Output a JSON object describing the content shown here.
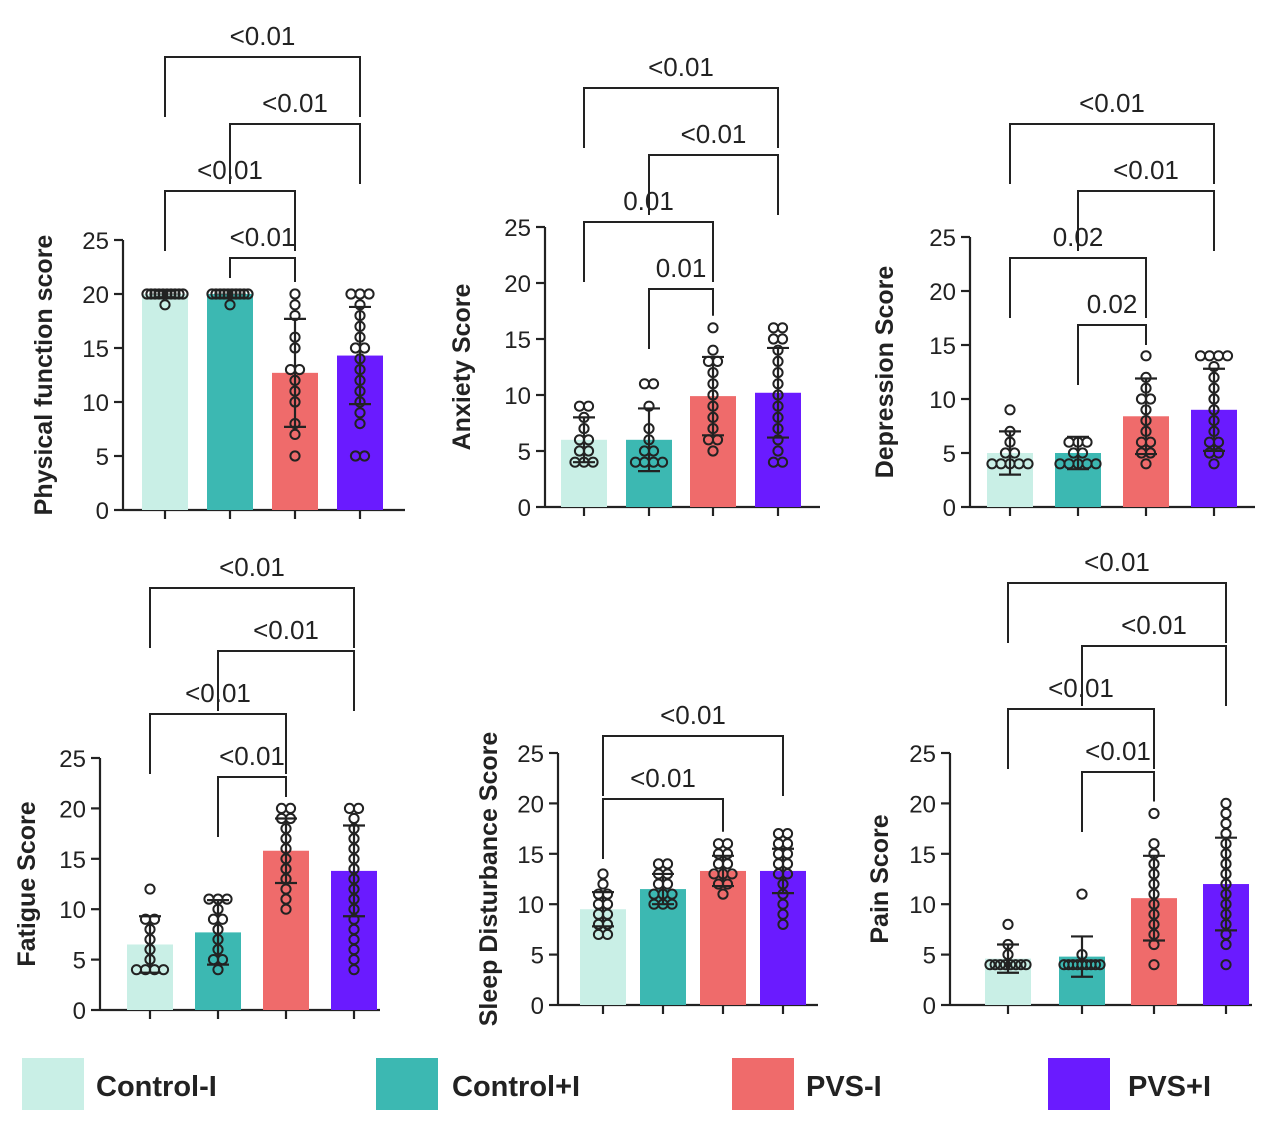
{
  "legend": [
    {
      "label": "Control-I",
      "color": "#c9efe6"
    },
    {
      "label": "Control+I",
      "color": "#3cb8b2"
    },
    {
      "label": "PVS-I",
      "color": "#ef6b6b"
    },
    {
      "label": "PVS+I",
      "color": "#6a1bff"
    }
  ],
  "chart_data": [
    {
      "type": "bar",
      "ylabel": "Physical function score",
      "categories": [
        "Control-I",
        "Control+I",
        "PVS-I",
        "PVS+I"
      ],
      "values": [
        20,
        20,
        12.7,
        14.3
      ],
      "sd": [
        0.3,
        0.4,
        5.0,
        4.5
      ],
      "ylim": [
        0,
        25
      ],
      "yticks": [
        0,
        5,
        10,
        15,
        20,
        25
      ],
      "points": [
        [
          19,
          20,
          20,
          20,
          20,
          20,
          20,
          20,
          20,
          20,
          20
        ],
        [
          19,
          20,
          20,
          20,
          20,
          20,
          20,
          20,
          20,
          20,
          20
        ],
        [
          5,
          7,
          8,
          10,
          11,
          12,
          13,
          13,
          15,
          16,
          18,
          19,
          20
        ],
        [
          5,
          5,
          8,
          9,
          10,
          11,
          12,
          13,
          14,
          15,
          15,
          16,
          17,
          18,
          19,
          20,
          20,
          20
        ]
      ],
      "comparisons": [
        {
          "from": 0,
          "to": 3,
          "label": "<0.01"
        },
        {
          "from": 1,
          "to": 3,
          "label": "<0.01"
        },
        {
          "from": 0,
          "to": 2,
          "label": "<0.01"
        },
        {
          "from": 1,
          "to": 2,
          "label": "<0.01"
        }
      ]
    },
    {
      "type": "bar",
      "ylabel": "Anxiety Score",
      "categories": [
        "Control-I",
        "Control+I",
        "PVS-I",
        "PVS+I"
      ],
      "values": [
        6,
        6,
        9.9,
        10.2
      ],
      "sd": [
        2,
        2.8,
        3.5,
        4
      ],
      "ylim": [
        0,
        25
      ],
      "yticks": [
        0,
        5,
        10,
        15,
        20,
        25
      ],
      "points": [
        [
          4,
          4,
          4,
          5,
          5,
          6,
          6,
          7,
          8,
          9,
          9
        ],
        [
          4,
          4,
          4,
          4,
          5,
          5,
          6,
          7,
          9,
          11,
          11
        ],
        [
          5,
          6,
          6,
          7,
          8,
          9,
          10,
          11,
          12,
          13,
          13,
          14,
          16
        ],
        [
          4,
          4,
          5,
          6,
          7,
          8,
          9,
          10,
          11,
          12,
          13,
          14,
          15,
          15,
          16,
          16
        ]
      ],
      "comparisons": [
        {
          "from": 0,
          "to": 3,
          "label": "<0.01"
        },
        {
          "from": 1,
          "to": 3,
          "label": "<0.01"
        },
        {
          "from": 0,
          "to": 2,
          "label": "0.01"
        },
        {
          "from": 1,
          "to": 2,
          "label": "0.01"
        }
      ]
    },
    {
      "type": "bar",
      "ylabel": "Depression Score",
      "categories": [
        "Control-I",
        "Control+I",
        "PVS-I",
        "PVS+I"
      ],
      "values": [
        5,
        5,
        8.4,
        9
      ],
      "sd": [
        2,
        1.5,
        3.5,
        3.8
      ],
      "ylim": [
        0,
        25
      ],
      "yticks": [
        0,
        5,
        10,
        15,
        20,
        25
      ],
      "points": [
        [
          4,
          4,
          4,
          4,
          4,
          5,
          5,
          6,
          7,
          9
        ],
        [
          4,
          4,
          4,
          4,
          4,
          5,
          5,
          6,
          6,
          6
        ],
        [
          4,
          5,
          5,
          6,
          6,
          7,
          8,
          9,
          10,
          10,
          11,
          12,
          14
        ],
        [
          4,
          5,
          5,
          6,
          6,
          7,
          8,
          9,
          10,
          11,
          12,
          13,
          14,
          14,
          14,
          14
        ]
      ],
      "comparisons": [
        {
          "from": 0,
          "to": 3,
          "label": "<0.01"
        },
        {
          "from": 1,
          "to": 3,
          "label": "<0.01"
        },
        {
          "from": 0,
          "to": 2,
          "label": "0.02"
        },
        {
          "from": 1,
          "to": 2,
          "label": "0.02"
        }
      ]
    },
    {
      "type": "bar",
      "ylabel": "Fatigue Score",
      "categories": [
        "Control-I",
        "Control+I",
        "PVS-I",
        "PVS+I"
      ],
      "values": [
        6.5,
        7.7,
        15.8,
        13.8
      ],
      "sd": [
        2.8,
        3.2,
        3.2,
        4.5
      ],
      "ylim": [
        0,
        25
      ],
      "yticks": [
        0,
        5,
        10,
        15,
        20,
        25
      ],
      "points": [
        [
          4,
          4,
          4,
          4,
          5,
          6,
          7,
          8,
          9,
          9,
          12
        ],
        [
          4,
          5,
          5,
          6,
          7,
          8,
          9,
          9,
          10,
          11,
          11,
          11
        ],
        [
          10,
          11,
          12,
          13,
          14,
          15,
          16,
          17,
          18,
          19,
          19,
          20,
          20
        ],
        [
          4,
          5,
          6,
          7,
          8,
          9,
          10,
          11,
          12,
          13,
          14,
          15,
          16,
          17,
          18,
          19,
          20,
          20
        ]
      ],
      "comparisons": [
        {
          "from": 0,
          "to": 3,
          "label": "<0.01"
        },
        {
          "from": 1,
          "to": 3,
          "label": "<0.01"
        },
        {
          "from": 0,
          "to": 2,
          "label": "<0.01"
        },
        {
          "from": 1,
          "to": 2,
          "label": "<0.01"
        }
      ]
    },
    {
      "type": "bar",
      "ylabel": "Sleep Disturbance Score",
      "categories": [
        "Control-I",
        "Control+I",
        "PVS-I",
        "PVS+I"
      ],
      "values": [
        9.5,
        11.5,
        13.3,
        13.3
      ],
      "sd": [
        1.7,
        1.5,
        1.5,
        2.2
      ],
      "ylim": [
        0,
        25
      ],
      "yticks": [
        0,
        5,
        10,
        15,
        20,
        25
      ],
      "points": [
        [
          7,
          7,
          8,
          8,
          9,
          9,
          10,
          10,
          11,
          11,
          12,
          13
        ],
        [
          10,
          10,
          10,
          11,
          11,
          11,
          12,
          12,
          13,
          13,
          14,
          14
        ],
        [
          11,
          12,
          12,
          13,
          13,
          13,
          14,
          14,
          15,
          15,
          16,
          16
        ],
        [
          8,
          9,
          10,
          11,
          12,
          13,
          13,
          14,
          14,
          15,
          15,
          16,
          16,
          17,
          17
        ]
      ],
      "comparisons": [
        {
          "from": 0,
          "to": 3,
          "label": "<0.01"
        },
        {
          "from": 0,
          "to": 2,
          "label": "<0.01"
        }
      ]
    },
    {
      "type": "bar",
      "ylabel": "Pain Score",
      "categories": [
        "Control-I",
        "Control+I",
        "PVS-I",
        "PVS+I"
      ],
      "values": [
        4.6,
        4.8,
        10.6,
        12
      ],
      "sd": [
        1.4,
        2,
        4.2,
        4.6
      ],
      "ylim": [
        0,
        25
      ],
      "yticks": [
        0,
        5,
        10,
        15,
        20,
        25
      ],
      "points": [
        [
          4,
          4,
          4,
          4,
          4,
          4,
          4,
          4,
          5,
          6,
          8
        ],
        [
          4,
          4,
          4,
          4,
          4,
          4,
          4,
          4,
          4,
          5,
          11
        ],
        [
          4,
          6,
          7,
          8,
          9,
          10,
          11,
          12,
          13,
          14,
          15,
          16,
          19
        ],
        [
          4,
          6,
          7,
          8,
          9,
          10,
          11,
          12,
          13,
          14,
          15,
          16,
          17,
          18,
          19,
          20
        ]
      ],
      "comparisons": [
        {
          "from": 0,
          "to": 3,
          "label": "<0.01"
        },
        {
          "from": 1,
          "to": 3,
          "label": "<0.01"
        },
        {
          "from": 0,
          "to": 2,
          "label": "<0.01"
        },
        {
          "from": 1,
          "to": 2,
          "label": "<0.01"
        }
      ]
    }
  ]
}
